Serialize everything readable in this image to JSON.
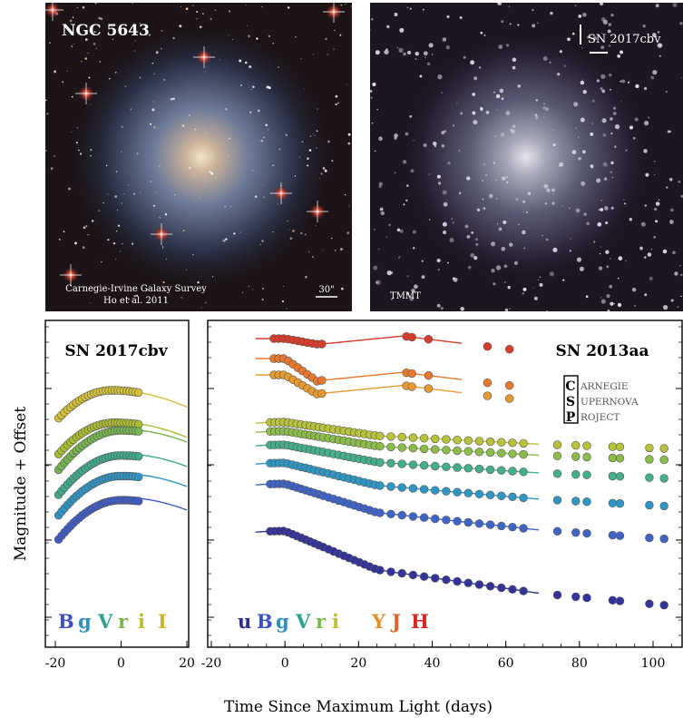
{
  "images": {
    "left": {
      "title": "NGC 5643",
      "credit_line1": "Carnegie-Irvine Galaxy Survey",
      "credit_line2": "Ho et al. 2011",
      "scale_label": "30\""
    },
    "right": {
      "title": "SN 2017cbv",
      "credit": "TMMT"
    }
  },
  "axes": {
    "ylabel": "Magnitude + Offset",
    "xlabel": "Time Since Maximum Light (days)"
  },
  "chart_data": [
    {
      "type": "scatter",
      "title": "SN 2017cbv",
      "xlim": [
        -20,
        20
      ],
      "xticks": [
        "-20",
        "0",
        "20"
      ],
      "y_values": "magnitude + offset (no numeric tick labels)",
      "legend": [
        {
          "label": "B",
          "color": "#3a52c4"
        },
        {
          "label": "g",
          "color": "#2f8fc0"
        },
        {
          "label": "V",
          "color": "#2f9f8f"
        },
        {
          "label": "r",
          "color": "#7ab84a"
        },
        {
          "label": "i",
          "color": "#b6c030"
        },
        {
          "label": "I",
          "color": "#cfb52a"
        }
      ],
      "series": [
        {
          "name": "I",
          "color": "#d3c13a",
          "peak_day": -3,
          "level": 0
        },
        {
          "name": "i",
          "color": "#aabd32",
          "peak_day": -2,
          "level": 1
        },
        {
          "name": "r",
          "color": "#76b552",
          "peak_day": 0,
          "level": 2
        },
        {
          "name": "V",
          "color": "#3fa98c",
          "peak_day": 0,
          "level": 3
        },
        {
          "name": "g",
          "color": "#2f93c4",
          "peak_day": 0,
          "level": 4
        },
        {
          "name": "B",
          "color": "#3f5cc6",
          "peak_day": 0,
          "level": 5
        }
      ]
    },
    {
      "type": "scatter",
      "title": "SN 2013aa",
      "xlim": [
        -20,
        105
      ],
      "xticks": [
        "-20",
        "0",
        "20",
        "40",
        "60",
        "80",
        "100"
      ],
      "legend": [
        {
          "label": "u",
          "color": "#2e2e8e"
        },
        {
          "label": "B",
          "color": "#3a52c4"
        },
        {
          "label": "g",
          "color": "#2f8fc0"
        },
        {
          "label": "V",
          "color": "#2f9f8f"
        },
        {
          "label": "r",
          "color": "#7ab84a"
        },
        {
          "label": "i",
          "color": "#b6c030"
        },
        {
          "label": "Y",
          "color": "#e0922a"
        },
        {
          "label": "J",
          "color": "#e0622a"
        },
        {
          "label": "H",
          "color": "#d42a22"
        }
      ],
      "series": [
        {
          "name": "H",
          "color": "#d83a2c"
        },
        {
          "name": "J",
          "color": "#e8782e"
        },
        {
          "name": "Y",
          "color": "#e89a30"
        },
        {
          "name": "i",
          "color": "#b8c23a"
        },
        {
          "name": "r",
          "color": "#8cbc4a"
        },
        {
          "name": "V",
          "color": "#45ae8a"
        },
        {
          "name": "g",
          "color": "#2f96c4"
        },
        {
          "name": "B",
          "color": "#3f64c6"
        },
        {
          "name": "u",
          "color": "#33339a"
        }
      ]
    }
  ],
  "csp_logo": {
    "letters": [
      "C",
      "S",
      "P"
    ],
    "words": [
      "ARNEGIE",
      "UPERNOVA",
      "ROJECT"
    ]
  }
}
